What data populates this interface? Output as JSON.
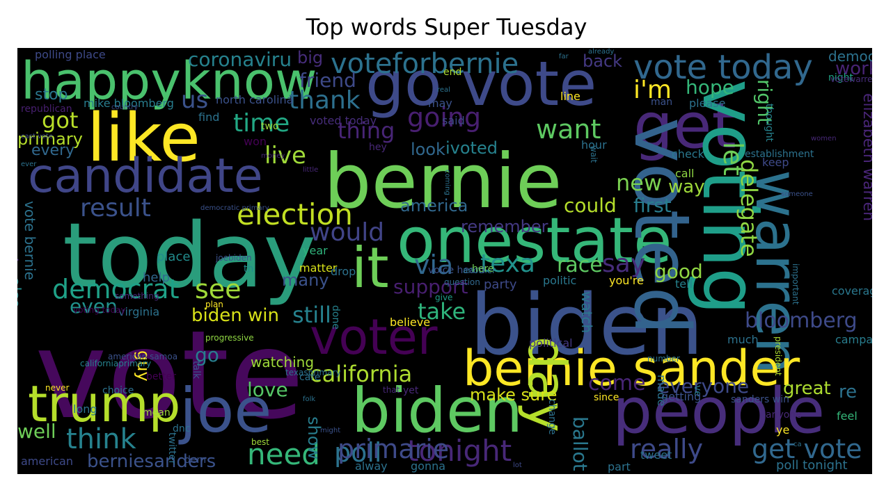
{
  "chart_data": {
    "type": "wordcloud",
    "title": "Top words Super Tuesday",
    "background": "#000000",
    "palette": "viridis",
    "words": [
      {
        "text": "vote",
        "color": "#46085c"
      },
      {
        "text": "today",
        "color": "#2a9d7c"
      },
      {
        "text": "biden",
        "color": "#3b528b"
      },
      {
        "text": "bernie",
        "color": "#6ece58"
      },
      {
        "text": "onestate",
        "color": "#35b779"
      },
      {
        "text": "go vote",
        "color": "#3e4a89"
      },
      {
        "text": "get",
        "color": "#482878"
      },
      {
        "text": "voted",
        "color": "#33638d"
      },
      {
        "text": "voting",
        "color": "#1f9e89"
      },
      {
        "text": "warren",
        "color": "#2c728e"
      },
      {
        "text": "joe",
        "color": "#3b528b"
      },
      {
        "text": "biden",
        "color": "#5ec962"
      },
      {
        "text": "people",
        "color": "#472d7b"
      },
      {
        "text": "bernie sander",
        "color": "#fde725"
      },
      {
        "text": "like",
        "color": "#fde725"
      },
      {
        "text": "happyknow",
        "color": "#4ac16d"
      },
      {
        "text": "candidate",
        "color": "#404688"
      },
      {
        "text": "trump",
        "color": "#b5de2b"
      },
      {
        "text": "it",
        "color": "#6ece58"
      },
      {
        "text": "voter",
        "color": "#440154"
      },
      {
        "text": "day",
        "color": "#b5de2b"
      },
      {
        "text": "vote today",
        "color": "#31688e"
      },
      {
        "text": "voteforbernie",
        "color": "#2c728e"
      },
      {
        "text": "election",
        "color": "#c2df23"
      },
      {
        "text": "democrat",
        "color": "#1fa187"
      },
      {
        "text": "think",
        "color": "#26828e"
      },
      {
        "text": "need",
        "color": "#35b779"
      },
      {
        "text": "california",
        "color": "#addc30"
      },
      {
        "text": "time",
        "color": "#22a884"
      },
      {
        "text": "want",
        "color": "#5ec962"
      },
      {
        "text": "going",
        "color": "#481f70"
      },
      {
        "text": "via",
        "color": "#31688e"
      },
      {
        "text": "texa",
        "color": "#21918c"
      },
      {
        "text": "say",
        "color": "#472d7b"
      },
      {
        "text": "would",
        "color": "#414487"
      },
      {
        "text": "result",
        "color": "#3b528b"
      },
      {
        "text": "tonight",
        "color": "#482878"
      },
      {
        "text": "poll",
        "color": "#2c728e"
      },
      {
        "text": "berniesanders",
        "color": "#3b528b"
      },
      {
        "text": "really",
        "color": "#3e4a89"
      },
      {
        "text": "get vote",
        "color": "#31688e"
      },
      {
        "text": "bloomberg",
        "color": "#3e4a89"
      },
      {
        "text": "delegate",
        "color": "#90d743"
      },
      {
        "text": "let",
        "color": "#6ece58"
      },
      {
        "text": "right",
        "color": "#52c569"
      },
      {
        "text": "elizabeth warren",
        "color": "#482576"
      },
      {
        "text": "i'm",
        "color": "#fde725"
      },
      {
        "text": "hope",
        "color": "#35b779"
      },
      {
        "text": "work",
        "color": "#482475"
      },
      {
        "text": "us",
        "color": "#3b528b"
      },
      {
        "text": "friend",
        "color": "#3e4a89"
      },
      {
        "text": "thank",
        "color": "#2d708e"
      },
      {
        "text": "thing",
        "color": "#482576"
      },
      {
        "text": "got",
        "color": "#b8de29"
      },
      {
        "text": "primary",
        "color": "#b5de2b"
      },
      {
        "text": "every",
        "color": "#31688e"
      },
      {
        "text": "live",
        "color": "#a0da39"
      },
      {
        "text": "new",
        "color": "#7ad151"
      },
      {
        "text": "way",
        "color": "#9fda3a"
      },
      {
        "text": "first",
        "color": "#287d8e"
      },
      {
        "text": "could",
        "color": "#b5de2b"
      },
      {
        "text": "america",
        "color": "#31688e"
      },
      {
        "text": "remember",
        "color": "#443983"
      },
      {
        "text": "race",
        "color": "#5ec962"
      },
      {
        "text": "support",
        "color": "#481f70"
      },
      {
        "text": "take",
        "color": "#2fb47c"
      },
      {
        "text": "still",
        "color": "#26828e"
      },
      {
        "text": "see",
        "color": "#a0da39"
      },
      {
        "text": "even",
        "color": "#21918c"
      },
      {
        "text": "biden win",
        "color": "#d8e219"
      },
      {
        "text": "many",
        "color": "#3b528b"
      },
      {
        "text": "good",
        "color": "#90d743"
      },
      {
        "text": "make",
        "color": "#482878"
      },
      {
        "text": "also",
        "color": "#228c8d"
      },
      {
        "text": "vote bernie",
        "color": "#2c728e"
      },
      {
        "text": "make sure",
        "color": "#d8e219"
      },
      {
        "text": "show",
        "color": "#287d8e"
      },
      {
        "text": "love",
        "color": "#56c667"
      },
      {
        "text": "come",
        "color": "#482576"
      },
      {
        "text": "everyone",
        "color": "#3e4a89"
      },
      {
        "text": "great",
        "color": "#addc30"
      },
      {
        "text": "re",
        "color": "#2c728e"
      },
      {
        "text": "ballot",
        "color": "#2a788e"
      },
      {
        "text": "well",
        "color": "#6ece58"
      },
      {
        "text": "go",
        "color": "#287d8e"
      },
      {
        "text": "guy",
        "color": "#fde725"
      },
      {
        "text": "watch",
        "color": "#2a788e"
      },
      {
        "text": "coronaviru",
        "color": "#26828e"
      },
      {
        "text": "big",
        "color": "#472d7b"
      },
      {
        "text": "back",
        "color": "#443983"
      },
      {
        "text": "stop",
        "color": "#2a788e"
      },
      {
        "text": "mike bloomberg",
        "color": "#287d8e"
      },
      {
        "text": "ivoted",
        "color": "#26828e"
      },
      {
        "text": "look",
        "color": "#31688e"
      },
      {
        "text": "watching",
        "color": "#9fda3a"
      },
      {
        "text": "primarie",
        "color": "#3e4a89"
      },
      {
        "text": "poll tonight",
        "color": "#2c728e"
      },
      {
        "text": "polling place",
        "color": "#3e4a89"
      },
      {
        "text": "north carolina",
        "color": "#3b528b"
      },
      {
        "text": "republican",
        "color": "#481f70"
      },
      {
        "text": "find",
        "color": "#2c728e"
      },
      {
        "text": "won",
        "color": "#440154"
      },
      {
        "text": "two",
        "color": "#a0da39"
      },
      {
        "text": "voted today",
        "color": "#472d7b"
      },
      {
        "text": "hey",
        "color": "#482878"
      },
      {
        "text": "may",
        "color": "#3b528b"
      },
      {
        "text": "said",
        "color": "#3e4a89"
      },
      {
        "text": "end",
        "color": "#addc30"
      },
      {
        "text": "line",
        "color": "#fde725"
      },
      {
        "text": "man",
        "color": "#3b528b"
      },
      {
        "text": "please",
        "color": "#2c728e"
      },
      {
        "text": "hour",
        "color": "#2c728e"
      },
      {
        "text": "check",
        "color": "#2a788e"
      },
      {
        "text": "call",
        "color": "#90d743"
      },
      {
        "text": "keep",
        "color": "#3e4a89"
      },
      {
        "text": "thought",
        "color": "#26828e"
      },
      {
        "text": "democracy",
        "color": "#2c728e"
      },
      {
        "text": "night",
        "color": "#20a386"
      },
      {
        "text": "votewarren",
        "color": "#472d7b"
      },
      {
        "text": "place",
        "color": "#228c8d"
      },
      {
        "text": "year",
        "color": "#2fb47c"
      },
      {
        "text": "matter",
        "color": "#d8e219"
      },
      {
        "text": "help",
        "color": "#31688e"
      },
      {
        "text": "th",
        "color": "#228c8d"
      },
      {
        "text": "drop",
        "color": "#2c728e"
      },
      {
        "text": "party",
        "color": "#3e4a89"
      },
      {
        "text": "politic",
        "color": "#2a788e"
      },
      {
        "text": "you're",
        "color": "#fde725"
      },
      {
        "text": "tell",
        "color": "#26828e"
      },
      {
        "text": "coverage",
        "color": "#2a788e"
      },
      {
        "text": "much",
        "color": "#2c728e"
      },
      {
        "text": "campaign",
        "color": "#287d8e"
      },
      {
        "text": "political",
        "color": "#443983"
      },
      {
        "text": "believe",
        "color": "#fde725"
      },
      {
        "text": "done",
        "color": "#26828e"
      },
      {
        "text": "give",
        "color": "#1f9e89"
      },
      {
        "text": "question",
        "color": "#31688e"
      },
      {
        "text": "voice heard",
        "color": "#3b528b"
      },
      {
        "text": "another",
        "color": "#2c728e"
      },
      {
        "text": "here",
        "color": "#6ece58"
      },
      {
        "text": "made",
        "color": "#2c728e"
      },
      {
        "text": "ve",
        "color": "#287d8e"
      },
      {
        "text": "president",
        "color": "#addc30"
      },
      {
        "text": "important",
        "color": "#2c728e"
      },
      {
        "text": "establishment",
        "color": "#2c728e"
      },
      {
        "text": "virginia",
        "color": "#2c728e"
      },
      {
        "text": "plan",
        "color": "#fde725"
      },
      {
        "text": "joebiden",
        "color": "#3b528b"
      },
      {
        "text": "something",
        "color": "#482878"
      },
      {
        "text": "voting today",
        "color": "#440154"
      },
      {
        "text": "forget",
        "color": "#2c728e"
      },
      {
        "text": "american samoa",
        "color": "#3b528b"
      },
      {
        "text": "californiaprimary",
        "color": "#26828e"
      },
      {
        "text": "never",
        "color": "#fde725"
      },
      {
        "text": "choice",
        "color": "#2c728e"
      },
      {
        "text": "long",
        "color": "#2c728e"
      },
      {
        "text": "better",
        "color": "#440154"
      },
      {
        "text": "mean",
        "color": "#a0da39"
      },
      {
        "text": "dnc",
        "color": "#2c728e"
      },
      {
        "text": "twitter",
        "color": "#2c728e"
      },
      {
        "text": "dem",
        "color": "#3b528b"
      },
      {
        "text": "talk",
        "color": "#3b528b"
      },
      {
        "text": "best",
        "color": "#a0da39"
      },
      {
        "text": "progressive",
        "color": "#90d743"
      },
      {
        "text": "texasprimary",
        "color": "#2c728e"
      },
      {
        "text": "folk",
        "color": "#2c728e"
      },
      {
        "text": "might",
        "color": "#3b528b"
      },
      {
        "text": "that",
        "color": "#482878"
      },
      {
        "text": "yet",
        "color": "#482878"
      },
      {
        "text": "care",
        "color": "#2c728e"
      },
      {
        "text": "change",
        "color": "#2c728e"
      },
      {
        "text": "part",
        "color": "#2c728e"
      },
      {
        "text": "tweet",
        "color": "#2c728e"
      },
      {
        "text": "since",
        "color": "#fde725"
      },
      {
        "text": "getting",
        "color": "#3b528b"
      },
      {
        "text": "sanders win",
        "color": "#3b528b"
      },
      {
        "text": "feel",
        "color": "#35b779"
      },
      {
        "text": "anyone",
        "color": "#482878"
      },
      {
        "text": "ye",
        "color": "#fde725"
      },
      {
        "text": "ca",
        "color": "#2c728e"
      },
      {
        "text": "lot",
        "color": "#3e4a89"
      },
      {
        "text": "alway",
        "color": "#2c728e"
      },
      {
        "text": "gonna",
        "color": "#2c728e"
      },
      {
        "text": "american",
        "color": "#3e4a89"
      },
      {
        "text": "cast vote",
        "color": "#3e4a89"
      },
      {
        "text": "country",
        "color": "#3e4a89"
      },
      {
        "text": "ever",
        "color": "#2c728e"
      },
      {
        "text": "money",
        "color": "#482878"
      },
      {
        "text": "democratic primary",
        "color": "#3b528b"
      },
      {
        "text": "little",
        "color": "#482878"
      },
      {
        "text": "coming",
        "color": "#2c728e"
      },
      {
        "text": "wait",
        "color": "#2c728e"
      },
      {
        "text": "real",
        "color": "#2c728e"
      },
      {
        "text": "far",
        "color": "#2c728e"
      },
      {
        "text": "already",
        "color": "#2c728e"
      },
      {
        "text": "women",
        "color": "#482878"
      },
      {
        "text": "someone",
        "color": "#3b528b"
      },
      {
        "text": "number",
        "color": "#2c728e"
      },
      {
        "text": "actually",
        "color": "#2c728e"
      },
      {
        "text": "ll",
        "color": "#2c728e"
      }
    ]
  }
}
